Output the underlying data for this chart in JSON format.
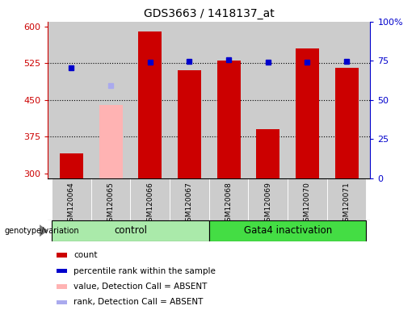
{
  "title": "GDS3663 / 1418137_at",
  "samples": [
    "GSM120064",
    "GSM120065",
    "GSM120066",
    "GSM120067",
    "GSM120068",
    "GSM120069",
    "GSM120070",
    "GSM120071"
  ],
  "bar_values": [
    340,
    440,
    590,
    510,
    530,
    390,
    555,
    515
  ],
  "bar_colors": [
    "#cc0000",
    "#ffb3b3",
    "#cc0000",
    "#cc0000",
    "#cc0000",
    "#cc0000",
    "#cc0000",
    "#cc0000"
  ],
  "dot_values": [
    515,
    480,
    527,
    529,
    532,
    528,
    528,
    529
  ],
  "dot_colors": [
    "#0000cc",
    "#aaaaee",
    "#0000cc",
    "#0000cc",
    "#0000cc",
    "#0000cc",
    "#0000cc",
    "#0000cc"
  ],
  "ylim_left": [
    290,
    610
  ],
  "yticks_left": [
    300,
    375,
    450,
    525,
    600
  ],
  "yticks_right": [
    0,
    25,
    50,
    75,
    100
  ],
  "ytick_labels_right": [
    "0",
    "25",
    "50",
    "75",
    "100%"
  ],
  "group_label_control": "control",
  "group_label_gata4": "Gata4 inactivation",
  "genotype_label": "genotype/variation",
  "bg_color_plot": "#cccccc",
  "bg_color_control": "#aaeaaa",
  "bg_color_gata4": "#44dd44",
  "legend_items": [
    {
      "label": "count",
      "color": "#cc0000"
    },
    {
      "label": "percentile rank within the sample",
      "color": "#0000cc"
    },
    {
      "label": "value, Detection Call = ABSENT",
      "color": "#ffb3b3"
    },
    {
      "label": "rank, Detection Call = ABSENT",
      "color": "#aaaaee"
    }
  ],
  "dotted_lines": [
    525,
    450,
    375
  ],
  "bar_width": 0.6,
  "n_control": 4,
  "n_gata4": 4
}
